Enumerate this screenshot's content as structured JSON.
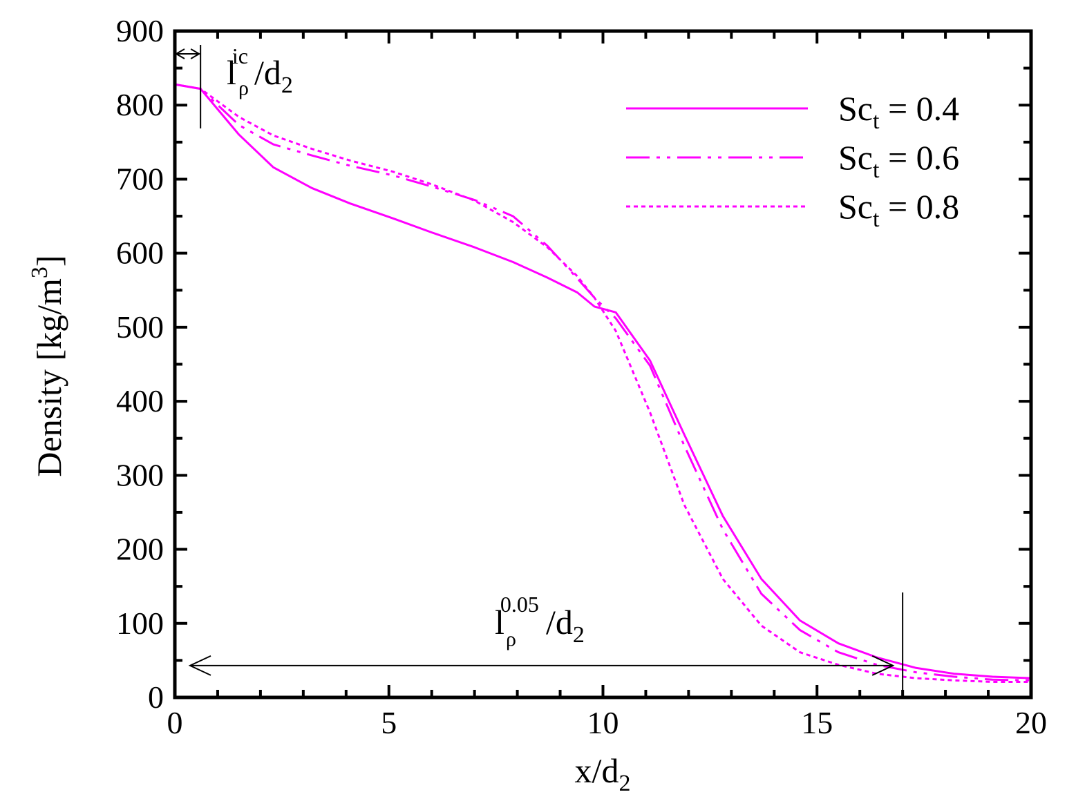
{
  "chart_data": {
    "type": "line",
    "xlabel": {
      "main": "x/d",
      "sub": "2"
    },
    "ylabel": {
      "main": "Density [kg/m",
      "sup": "3",
      "close": "]"
    },
    "xlim": [
      0,
      20
    ],
    "ylim": [
      0,
      900
    ],
    "xticks": [
      "0",
      "5",
      "10",
      "15",
      "20"
    ],
    "yticks": [
      "0",
      "100",
      "200",
      "300",
      "400",
      "500",
      "600",
      "700",
      "800",
      "900"
    ],
    "grid": false,
    "legend_position": "top-right",
    "series_color": "#ff00ff",
    "series": [
      {
        "name_main": "Sc",
        "name_sub": "t",
        "name_tail": " = 0.4",
        "style": "solid",
        "x": [
          0,
          0.6,
          1.5,
          2.3,
          3.2,
          4.1,
          5.1,
          6.0,
          7.0,
          7.9,
          8.7,
          9.4,
          9.8,
          10.3,
          11.1,
          11.9,
          12.8,
          13.7,
          14.6,
          15.5,
          16.4,
          17.3,
          18.2,
          19.1,
          20
        ],
        "y": [
          828,
          822,
          760,
          716,
          688,
          667,
          647,
          628,
          608,
          588,
          567,
          547,
          528,
          520,
          455,
          355,
          245,
          160,
          104,
          73,
          54,
          40,
          32,
          28,
          26
        ]
      },
      {
        "name_main": "Sc",
        "name_sub": "t",
        "name_tail": " = 0.6",
        "style": "dashdotdot",
        "x": [
          0,
          0.6,
          1.5,
          2.3,
          3.2,
          4.1,
          5.1,
          6.0,
          7.0,
          7.9,
          8.7,
          9.4,
          9.8,
          10.3,
          11.1,
          11.9,
          12.8,
          13.7,
          14.6,
          15.5,
          16.4,
          17.3,
          18.2,
          19.1,
          20
        ],
        "y": [
          828,
          822,
          773,
          747,
          732,
          718,
          705,
          690,
          672,
          650,
          610,
          566,
          540,
          512,
          448,
          340,
          227,
          140,
          91,
          61,
          44,
          34,
          28,
          24,
          23
        ]
      },
      {
        "name_main": "Sc",
        "name_sub": "t",
        "name_tail": " = 0.8",
        "style": "dotted",
        "x": [
          0,
          0.6,
          1.5,
          2.3,
          3.2,
          4.1,
          5.1,
          6.0,
          7.0,
          7.9,
          8.7,
          9.4,
          9.8,
          10.3,
          11.1,
          11.9,
          12.8,
          13.7,
          14.6,
          15.5,
          16.4,
          17.3,
          18.2,
          19.1,
          20
        ],
        "y": [
          828,
          822,
          784,
          759,
          741,
          725,
          710,
          693,
          671,
          642,
          608,
          569,
          540,
          495,
          385,
          260,
          160,
          97,
          61,
          44,
          32,
          26,
          23,
          21,
          21
        ]
      }
    ],
    "annotations": {
      "ic": {
        "text": "l",
        "sub": "ρ",
        "sup": "ic",
        "tail": "/d",
        "tail_sub": "2",
        "x": 0.6
      },
      "p05": {
        "text": "l",
        "sub": "ρ",
        "sup": "0.05",
        "tail": "/d",
        "tail_sub": "2",
        "x": 17.0,
        "y": 43
      }
    }
  }
}
